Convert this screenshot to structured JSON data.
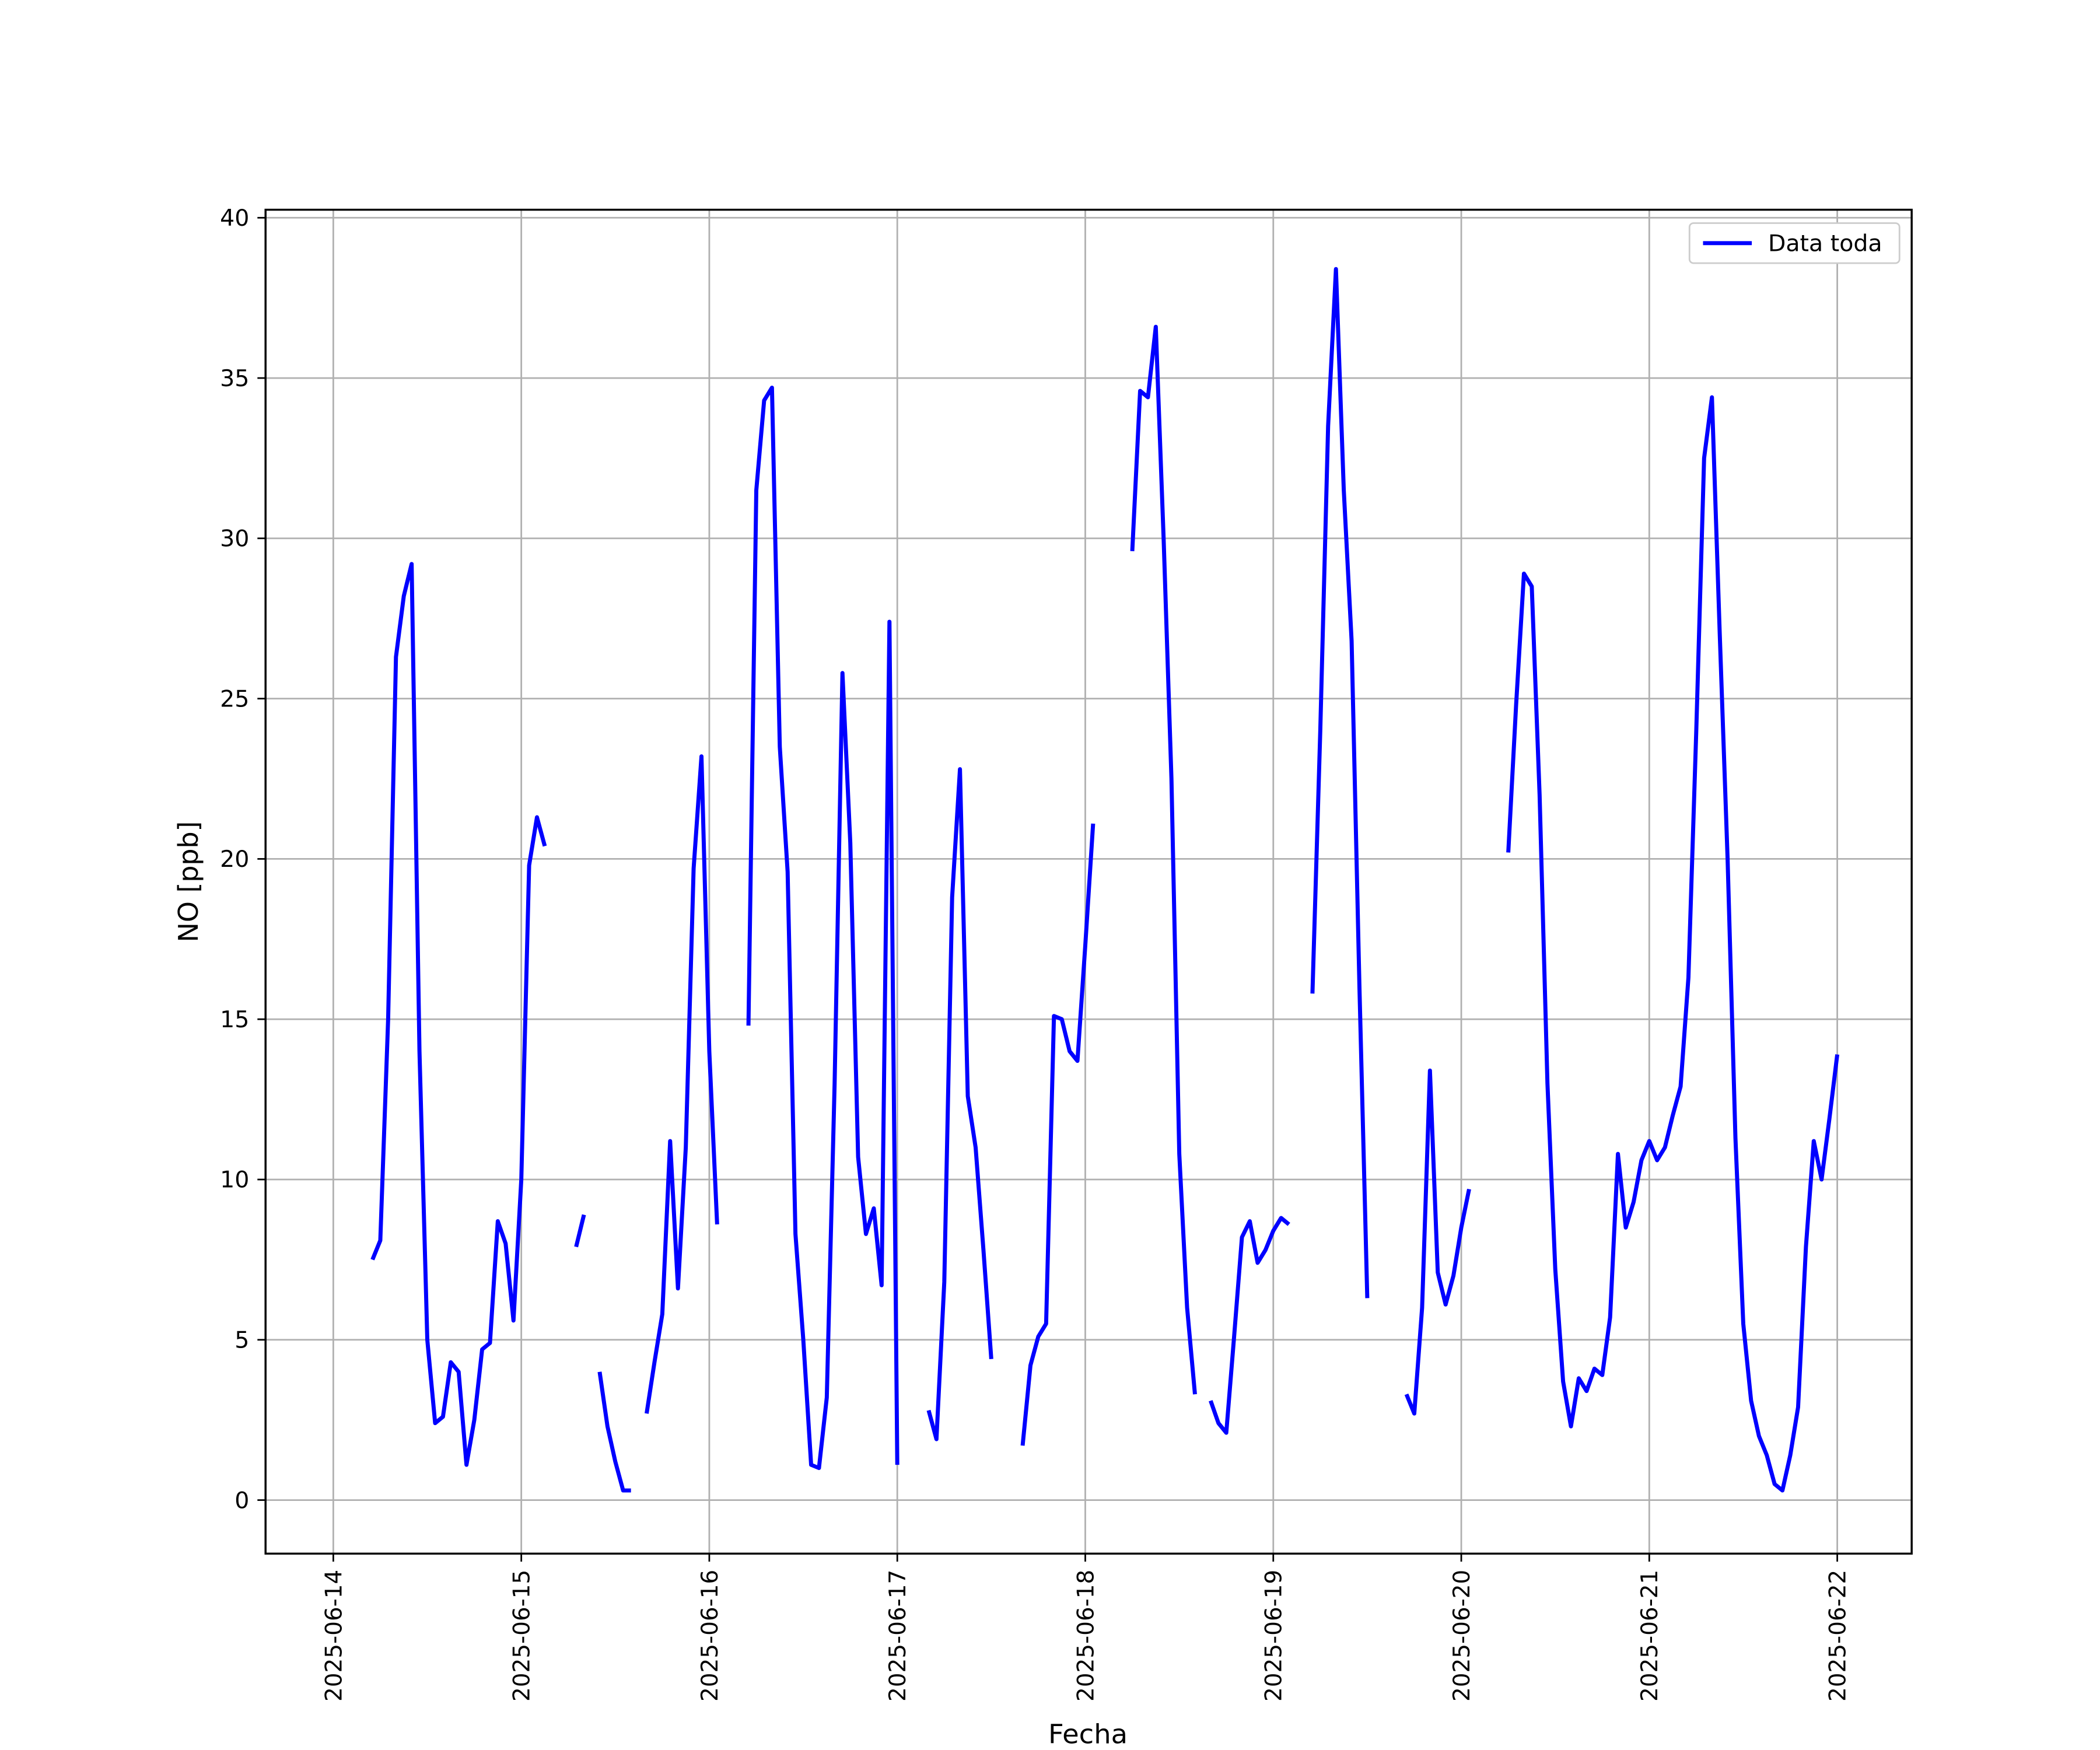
{
  "chart_data": {
    "type": "line",
    "xlabel": "Fecha",
    "ylabel": "NO [ppb]",
    "x": [
      "2025-06-14T05:00",
      "2025-06-14T06:00",
      "2025-06-14T07:00",
      "2025-06-14T08:00",
      "2025-06-14T09:00",
      "2025-06-14T10:00",
      "2025-06-14T11:00",
      "2025-06-14T12:00",
      "2025-06-14T13:00",
      "2025-06-14T14:00",
      "2025-06-14T15:00",
      "2025-06-14T16:00",
      "2025-06-14T17:00",
      "2025-06-14T18:00",
      "2025-06-14T19:00",
      "2025-06-14T20:00",
      "2025-06-14T21:00",
      "2025-06-14T22:00",
      "2025-06-14T23:00",
      "2025-06-15T00:00",
      "2025-06-15T01:00",
      "2025-06-15T02:00",
      "2025-06-15T03:00",
      "2025-06-15T04:00",
      "2025-06-15T07:00",
      "2025-06-15T08:00",
      "2025-06-15T09:00",
      "2025-06-15T10:00",
      "2025-06-15T11:00",
      "2025-06-15T12:00",
      "2025-06-15T13:00",
      "2025-06-15T14:00",
      "2025-06-15T15:00",
      "2025-06-15T16:00",
      "2025-06-15T17:00",
      "2025-06-15T18:00",
      "2025-06-15T19:00",
      "2025-06-15T20:00",
      "2025-06-15T21:00",
      "2025-06-15T22:00",
      "2025-06-15T23:00",
      "2025-06-16T00:00",
      "2025-06-16T01:00",
      "2025-06-16T02:00",
      "2025-06-16T05:00",
      "2025-06-16T06:00",
      "2025-06-16T07:00",
      "2025-06-16T08:00",
      "2025-06-16T09:00",
      "2025-06-16T10:00",
      "2025-06-16T11:00",
      "2025-06-16T12:00",
      "2025-06-16T13:00",
      "2025-06-16T14:00",
      "2025-06-16T15:00",
      "2025-06-16T16:00",
      "2025-06-16T17:00",
      "2025-06-16T18:00",
      "2025-06-16T19:00",
      "2025-06-16T20:00",
      "2025-06-16T21:00",
      "2025-06-16T22:00",
      "2025-06-16T23:00",
      "2025-06-17T00:00",
      "2025-06-17T01:00",
      "2025-06-17T04:00",
      "2025-06-17T05:00",
      "2025-06-17T06:00",
      "2025-06-17T07:00",
      "2025-06-17T08:00",
      "2025-06-17T09:00",
      "2025-06-17T10:00",
      "2025-06-17T11:00",
      "2025-06-17T12:00",
      "2025-06-17T13:00",
      "2025-06-17T16:00",
      "2025-06-17T17:00",
      "2025-06-17T18:00",
      "2025-06-17T19:00",
      "2025-06-17T20:00",
      "2025-06-17T21:00",
      "2025-06-17T22:00",
      "2025-06-17T23:00",
      "2025-06-18T00:00",
      "2025-06-18T01:00",
      "2025-06-18T02:00",
      "2025-06-18T06:00",
      "2025-06-18T07:00",
      "2025-06-18T08:00",
      "2025-06-18T09:00",
      "2025-06-18T10:00",
      "2025-06-18T11:00",
      "2025-06-18T12:00",
      "2025-06-18T13:00",
      "2025-06-18T14:00",
      "2025-06-18T15:00",
      "2025-06-18T16:00",
      "2025-06-18T17:00",
      "2025-06-18T18:00",
      "2025-06-18T19:00",
      "2025-06-18T20:00",
      "2025-06-18T21:00",
      "2025-06-18T22:00",
      "2025-06-18T23:00",
      "2025-06-19T00:00",
      "2025-06-19T01:00",
      "2025-06-19T02:00",
      "2025-06-19T03:00",
      "2025-06-19T05:00",
      "2025-06-19T06:00",
      "2025-06-19T07:00",
      "2025-06-19T08:00",
      "2025-06-19T09:00",
      "2025-06-19T10:00",
      "2025-06-19T11:00",
      "2025-06-19T12:00",
      "2025-06-19T13:00",
      "2025-06-19T17:00",
      "2025-06-19T18:00",
      "2025-06-19T19:00",
      "2025-06-19T20:00",
      "2025-06-19T21:00",
      "2025-06-19T22:00",
      "2025-06-19T23:00",
      "2025-06-20T00:00",
      "2025-06-20T01:00",
      "2025-06-20T02:00",
      "2025-06-20T06:00",
      "2025-06-20T07:00",
      "2025-06-20T08:00",
      "2025-06-20T09:00",
      "2025-06-20T10:00",
      "2025-06-20T11:00",
      "2025-06-20T12:00",
      "2025-06-20T13:00",
      "2025-06-20T14:00",
      "2025-06-20T15:00",
      "2025-06-20T16:00",
      "2025-06-20T17:00",
      "2025-06-20T18:00",
      "2025-06-20T19:00",
      "2025-06-20T20:00",
      "2025-06-20T21:00",
      "2025-06-20T22:00",
      "2025-06-20T23:00",
      "2025-06-21T00:00",
      "2025-06-21T01:00",
      "2025-06-21T02:00",
      "2025-06-21T03:00",
      "2025-06-21T04:00",
      "2025-06-21T05:00",
      "2025-06-21T06:00",
      "2025-06-21T07:00",
      "2025-06-21T08:00",
      "2025-06-21T09:00",
      "2025-06-21T10:00",
      "2025-06-21T11:00",
      "2025-06-21T12:00",
      "2025-06-21T13:00",
      "2025-06-21T14:00",
      "2025-06-21T15:00",
      "2025-06-21T16:00",
      "2025-06-21T17:00",
      "2025-06-21T18:00",
      "2025-06-21T19:00",
      "2025-06-21T20:00",
      "2025-06-21T21:00",
      "2025-06-21T22:00",
      "2025-06-21T23:00",
      "2025-06-22T00:00"
    ],
    "series": [
      {
        "name": "Data toda",
        "color": "#0000ff",
        "values": [
          7.5,
          8.1,
          15,
          26.3,
          28.2,
          29.2,
          14,
          5,
          2.4,
          2.6,
          4.3,
          4.0,
          1.1,
          2.5,
          4.7,
          4.9,
          8.7,
          8,
          5.6,
          10,
          19.8,
          21.3,
          20.4,
          null,
          7.9,
          8.9,
          null,
          4,
          2.3,
          1.2,
          0.3,
          0.3,
          null,
          2.7,
          4.3,
          5.8,
          11.2,
          6.6,
          11,
          19.7,
          23.2,
          14,
          8.6,
          null,
          14.8,
          31.5,
          34.3,
          34.7,
          23.5,
          19.6,
          8.3,
          5,
          1.1,
          1,
          3.2,
          13,
          25.8,
          20.5,
          10.7,
          8.3,
          9.1,
          6.7,
          27.4,
          1.1,
          null,
          2.8,
          1.9,
          6.8,
          18.8,
          22.8,
          12.6,
          11,
          7.8,
          4.4,
          null,
          1.7,
          4.2,
          5.1,
          5.5,
          15.1,
          15,
          14,
          13.7,
          17.3,
          21.1,
          null,
          29.6,
          34.6,
          34.4,
          36.6,
          30,
          22.5,
          10.8,
          6,
          3.3,
          null,
          3.1,
          2.4,
          2.1,
          5.1,
          8.2,
          8.7,
          7.4,
          7.8,
          8.4,
          8.8,
          8.6,
          null,
          15.8,
          24,
          33.5,
          38.4,
          31.5,
          26.8,
          16,
          6.3,
          null,
          3.3,
          2.7,
          6,
          13.4,
          7.1,
          6.1,
          7,
          8.5,
          9.7,
          null,
          20.2,
          24.8,
          28.9,
          28.5,
          22,
          13,
          7.2,
          3.7,
          2.3,
          3.8,
          3.4,
          4.1,
          3.9,
          5.7,
          10.8,
          8.5,
          9.3,
          10.6,
          11.2,
          10.6,
          11,
          12,
          12.9,
          16.3,
          24,
          32.5,
          34.4,
          27,
          20,
          11.3,
          5.5,
          3.1,
          2,
          1.4,
          0.5,
          0.3,
          1.4,
          2.9,
          7.9,
          11.2,
          10,
          11.9,
          13.9
        ]
      }
    ],
    "xlim": [
      "2025-06-13T15:21",
      "2025-06-22T09:30"
    ],
    "xticks": [
      "2025-06-14",
      "2025-06-15",
      "2025-06-16",
      "2025-06-17",
      "2025-06-18",
      "2025-06-19",
      "2025-06-20",
      "2025-06-21",
      "2025-06-22"
    ],
    "ylim": [
      -1.67,
      40.25
    ],
    "yticks": [
      0,
      5,
      10,
      15,
      20,
      25,
      30,
      35,
      40
    ],
    "grid": true,
    "legend": "upper right"
  }
}
